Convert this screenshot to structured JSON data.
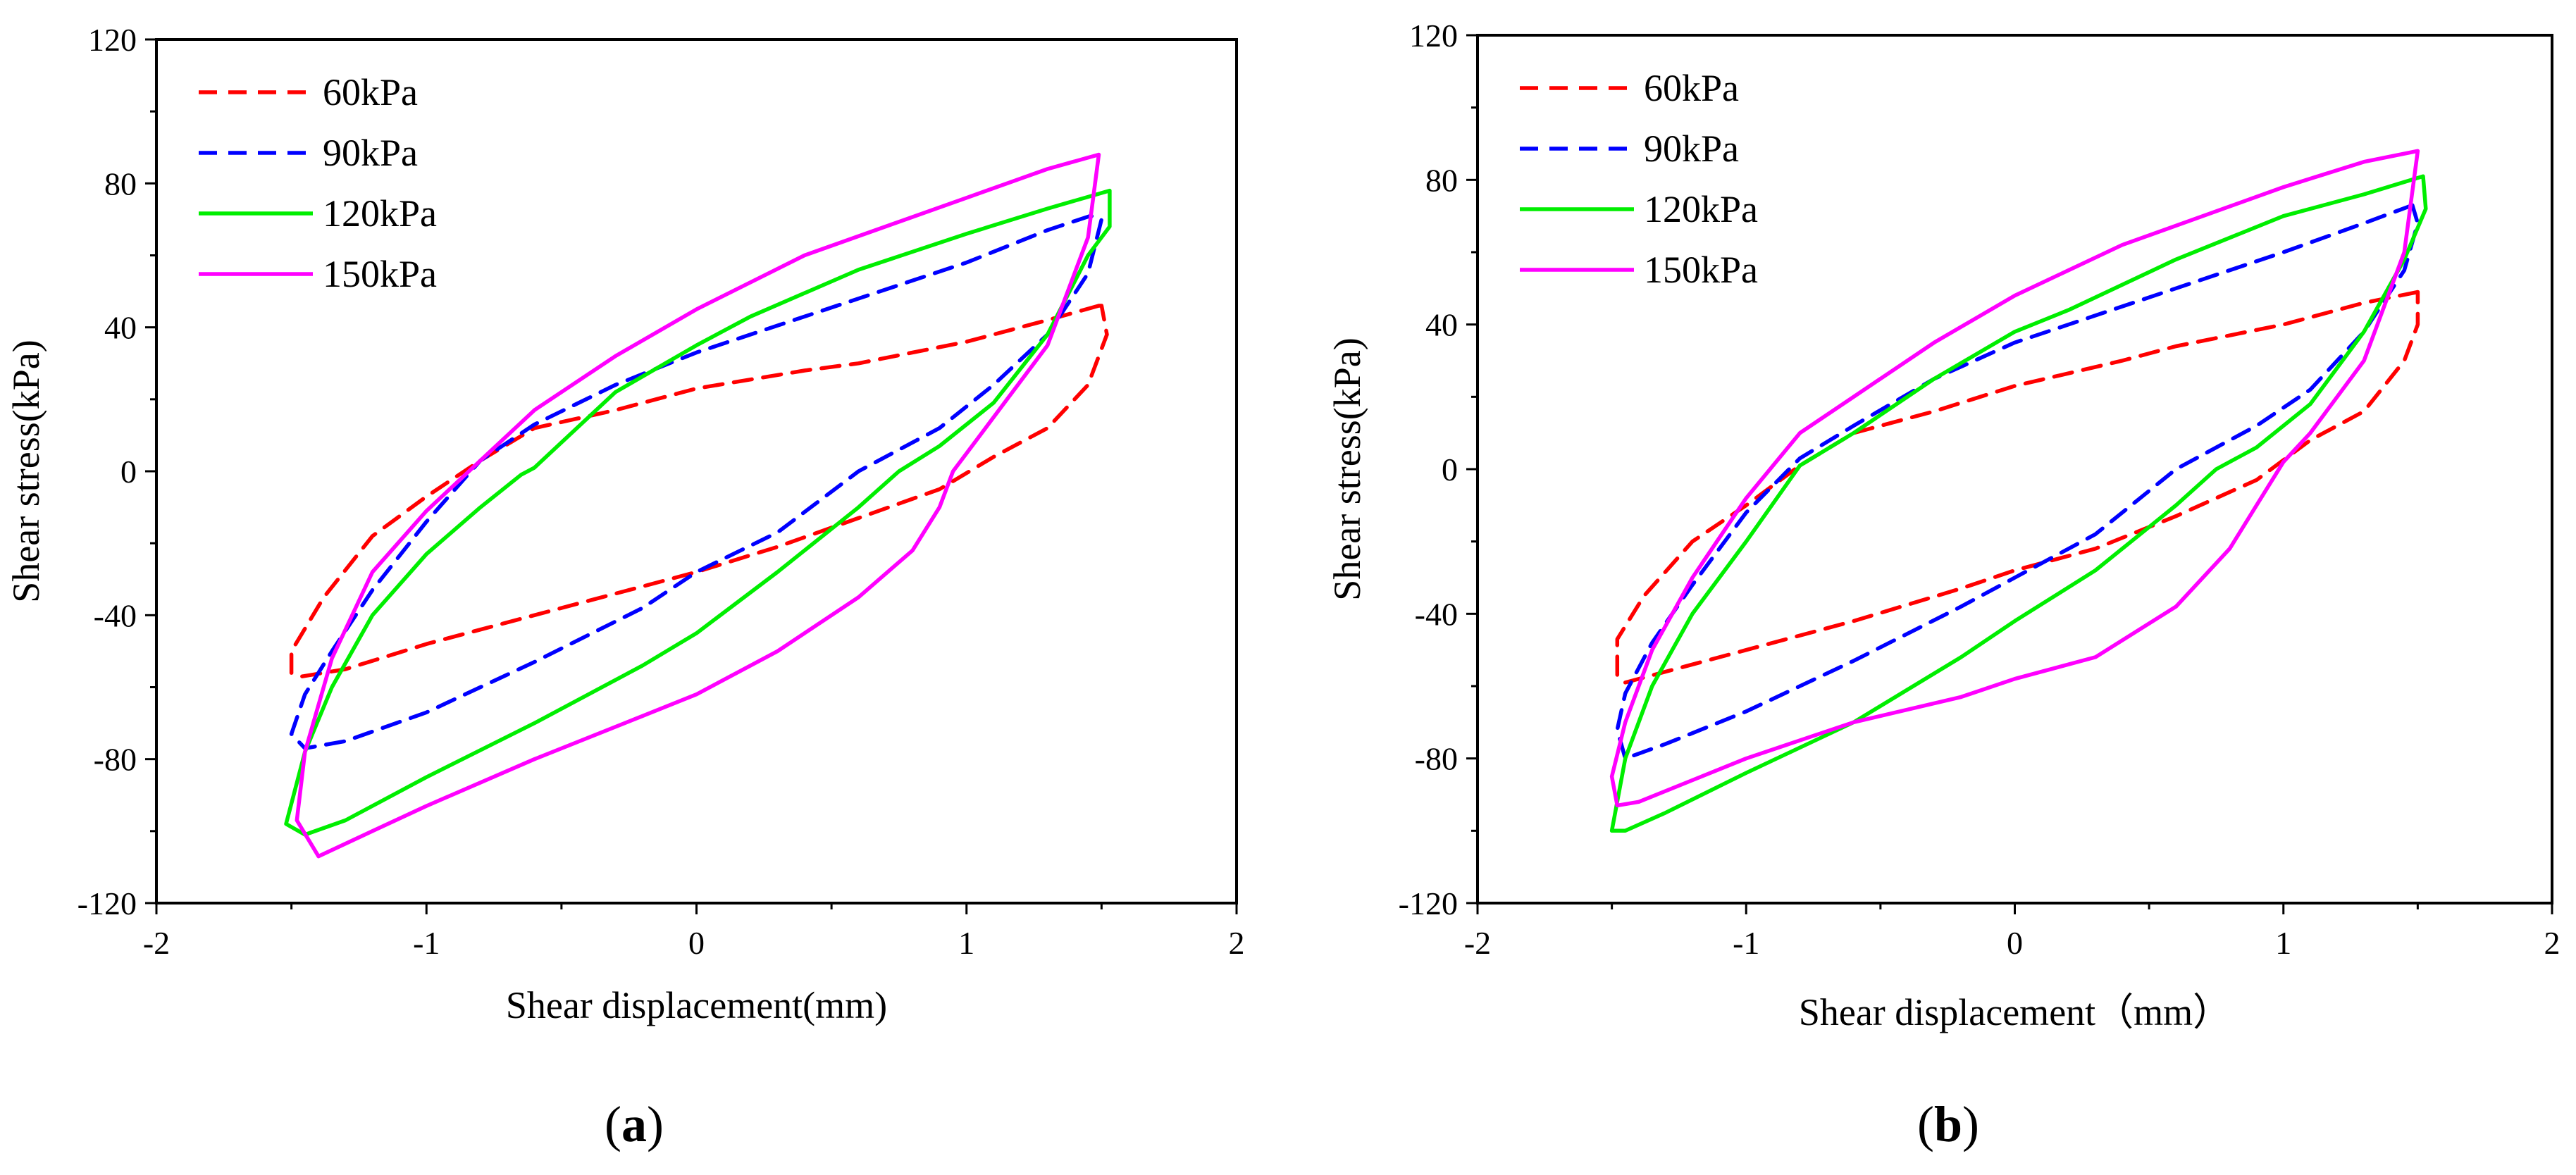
{
  "chart_data": [
    {
      "type": "line",
      "panel_label": "a",
      "xlabel": "Shear displacement(mm)",
      "ylabel": "Shear stress(kPa)",
      "xlim": [
        -2,
        2
      ],
      "ylim": [
        -120,
        120
      ],
      "xticks": [
        "-2",
        "-1",
        "0",
        "1",
        "2"
      ],
      "yticks": [
        "-120",
        "-80",
        "-40",
        "0",
        "40",
        "80",
        "120"
      ],
      "legend": "top-left",
      "grid": false,
      "series": [
        {
          "name": "60kPa",
          "color": "#ff0000",
          "dash": true,
          "x": [
            1.49,
            1.3,
            1.0,
            0.6,
            0.4,
            0.0,
            -0.3,
            -0.6,
            -0.8,
            -1.0,
            -1.2,
            -1.38,
            -1.5,
            -1.5,
            -1.46,
            -1.3,
            -1.0,
            -0.6,
            -0.2,
            0.0,
            0.3,
            0.6,
            0.9,
            1.1,
            1.3,
            1.45,
            1.52,
            1.5
          ],
          "y": [
            46,
            42,
            36,
            30,
            28,
            23,
            17,
            12,
            3,
            -7,
            -18,
            -35,
            -50,
            -56,
            -57,
            -55,
            -48,
            -40,
            -32,
            -28,
            -21,
            -13,
            -5,
            4,
            12,
            24,
            38,
            46
          ]
        },
        {
          "name": "90kPa",
          "color": "#0000ff",
          "dash": true,
          "x": [
            1.46,
            1.3,
            1.0,
            0.6,
            0.2,
            0.0,
            -0.3,
            -0.6,
            -0.8,
            -1.0,
            -1.2,
            -1.35,
            -1.45,
            -1.5,
            -1.45,
            -1.3,
            -1.0,
            -0.6,
            -0.2,
            0.0,
            0.3,
            0.6,
            0.9,
            1.1,
            1.3,
            1.45,
            1.5,
            1.46
          ],
          "y": [
            71,
            67,
            58,
            48,
            38,
            33,
            24,
            13,
            3,
            -14,
            -33,
            -50,
            -62,
            -73,
            -77,
            -75,
            -67,
            -53,
            -38,
            -28,
            -17,
            0,
            12,
            24,
            38,
            55,
            70,
            71
          ]
        },
        {
          "name": "120kPa",
          "color": "#00ee00",
          "dash": false,
          "x": [
            1.53,
            1.3,
            1.0,
            0.6,
            0.2,
            0.0,
            -0.3,
            -0.6,
            -0.65,
            -0.8,
            -1.0,
            -1.2,
            -1.35,
            -1.45,
            -1.52,
            -1.45,
            -1.3,
            -1.0,
            -0.6,
            -0.2,
            0.0,
            0.3,
            0.6,
            0.75,
            0.9,
            1.1,
            1.3,
            1.45,
            1.53,
            1.53
          ],
          "y": [
            78,
            73,
            66,
            56,
            43,
            35,
            22,
            1,
            -1,
            -10,
            -23,
            -40,
            -60,
            -78,
            -98,
            -101,
            -97,
            -85,
            -70,
            -54,
            -45,
            -28,
            -10,
            0,
            7,
            19,
            38,
            60,
            68,
            78
          ]
        },
        {
          "name": "150kPa",
          "color": "#ff00ff",
          "dash": false,
          "x": [
            1.49,
            1.3,
            1.0,
            0.7,
            0.4,
            0.0,
            -0.3,
            -0.6,
            -0.8,
            -1.0,
            -1.2,
            -1.35,
            -1.45,
            -1.48,
            -1.4,
            -1.2,
            -1.0,
            -0.6,
            -0.2,
            0.0,
            0.3,
            0.6,
            0.8,
            0.9,
            0.95,
            1.0,
            1.1,
            1.3,
            1.45,
            1.49
          ],
          "y": [
            88,
            84,
            76,
            68,
            60,
            45,
            32,
            17,
            3,
            -11,
            -28,
            -52,
            -78,
            -97,
            -107,
            -100,
            -93,
            -80,
            -68,
            -62,
            -50,
            -35,
            -22,
            -10,
            0,
            5,
            15,
            35,
            65,
            88
          ]
        }
      ]
    },
    {
      "type": "line",
      "panel_label": "b",
      "xlabel": "Shear displacement（mm）",
      "ylabel": "Shear stress(kPa)",
      "xlim": [
        -2,
        2
      ],
      "ylim": [
        -120,
        120
      ],
      "xticks": [
        "-2",
        "-1",
        "0",
        "1",
        "2"
      ],
      "yticks": [
        "-120",
        "-80",
        "-40",
        "0",
        "40",
        "80",
        "120"
      ],
      "legend": "top-left",
      "grid": false,
      "series": [
        {
          "name": "60kPa",
          "color": "#ff0000",
          "dash": true,
          "x": [
            1.5,
            1.3,
            1.0,
            0.6,
            0.4,
            0.0,
            -0.3,
            -0.6,
            -0.8,
            -1.0,
            -1.2,
            -1.38,
            -1.48,
            -1.48,
            -1.45,
            -1.3,
            -1.0,
            -0.6,
            -0.2,
            0.0,
            0.3,
            0.6,
            0.9,
            1.1,
            1.3,
            1.45,
            1.5,
            1.5
          ],
          "y": [
            49,
            46,
            40,
            34,
            30,
            23,
            16,
            10,
            1,
            -10,
            -20,
            -35,
            -47,
            -57,
            -59,
            -56,
            -50,
            -42,
            -33,
            -28,
            -22,
            -13,
            -3,
            8,
            16,
            30,
            40,
            49
          ]
        },
        {
          "name": "90kPa",
          "color": "#0000ff",
          "dash": true,
          "x": [
            1.48,
            1.3,
            1.0,
            0.6,
            0.2,
            0.0,
            -0.3,
            -0.6,
            -0.8,
            -1.0,
            -1.2,
            -1.35,
            -1.45,
            -1.48,
            -1.45,
            -1.3,
            -1.0,
            -0.6,
            -0.2,
            0.0,
            0.3,
            0.6,
            0.9,
            1.1,
            1.3,
            1.45,
            1.5,
            1.48
          ],
          "y": [
            73,
            68,
            60,
            50,
            40,
            35,
            25,
            12,
            3,
            -12,
            -32,
            -48,
            -62,
            -72,
            -80,
            -76,
            -67,
            -53,
            -38,
            -30,
            -18,
            0,
            12,
            22,
            38,
            55,
            68,
            73
          ]
        },
        {
          "name": "120kPa",
          "color": "#00ee00",
          "dash": false,
          "x": [
            1.52,
            1.3,
            1.0,
            0.6,
            0.2,
            0.0,
            -0.3,
            -0.6,
            -0.8,
            -1.0,
            -1.2,
            -1.35,
            -1.45,
            -1.5,
            -1.45,
            -1.3,
            -1.0,
            -0.6,
            -0.2,
            0.0,
            0.3,
            0.6,
            0.75,
            0.9,
            1.1,
            1.3,
            1.45,
            1.53,
            1.52
          ],
          "y": [
            81,
            76,
            70,
            58,
            44,
            38,
            25,
            10,
            1,
            -20,
            -40,
            -60,
            -80,
            -100,
            -100,
            -95,
            -84,
            -70,
            -52,
            -42,
            -28,
            -10,
            0,
            6,
            18,
            38,
            58,
            72,
            81
          ]
        },
        {
          "name": "150kPa",
          "color": "#ff00ff",
          "dash": false,
          "x": [
            1.5,
            1.3,
            1.0,
            0.7,
            0.4,
            0.0,
            -0.3,
            -0.6,
            -0.8,
            -1.0,
            -1.2,
            -1.35,
            -1.45,
            -1.5,
            -1.48,
            -1.4,
            -1.2,
            -1.0,
            -0.6,
            -0.2,
            0.0,
            0.3,
            0.6,
            0.8,
            0.9,
            1.0,
            1.1,
            1.3,
            1.45,
            1.5
          ],
          "y": [
            88,
            85,
            78,
            70,
            62,
            48,
            35,
            20,
            10,
            -8,
            -30,
            -50,
            -70,
            -85,
            -93,
            -92,
            -86,
            -80,
            -70,
            -63,
            -58,
            -52,
            -38,
            -22,
            -10,
            2,
            10,
            30,
            60,
            88
          ]
        }
      ]
    }
  ]
}
